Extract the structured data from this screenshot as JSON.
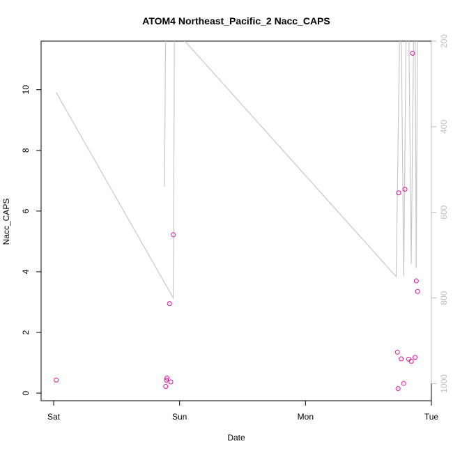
{
  "chart_data": {
    "type": "scatter",
    "title": "ATOM4 Northeast_Pacific_2 Nacc_CAPS",
    "xlabel": "Date",
    "ylabel": "Nacc_CAPS",
    "x_ticks": [
      "Sat",
      "Sun",
      "Mon",
      "Tue"
    ],
    "xlim_days": [
      0,
      3
    ],
    "ylim": [
      -0.25,
      11.6
    ],
    "y_ticks": [
      0,
      2,
      4,
      6,
      8,
      10
    ],
    "grid": false,
    "colors": {
      "points": "#e0139b",
      "altitude_line": "#c8c8c8",
      "right_axis": "#bdbdbd"
    },
    "series": [
      {
        "type": "scatter",
        "x": [
          0.02,
          0.89,
          0.895,
          0.9,
          0.92,
          0.93,
          0.95,
          2.73,
          2.735,
          2.74,
          2.76,
          2.78,
          2.79,
          2.82,
          2.84,
          2.85,
          2.87,
          2.88,
          2.89
        ],
        "y": [
          0.43,
          0.22,
          0.43,
          0.5,
          2.95,
          0.37,
          5.22,
          1.35,
          0.15,
          6.6,
          1.13,
          0.32,
          6.72,
          1.12,
          1.05,
          11.2,
          1.18,
          3.7,
          3.35
        ]
      },
      {
        "type": "line",
        "axis": "right",
        "x": [
          0.02,
          0.95,
          0.96,
          0.98,
          0.99,
          1.0,
          0.89,
          0.88,
          0.89,
          2.72,
          2.75,
          2.76,
          2.78,
          2.8,
          2.82,
          2.84,
          2.86,
          2.87,
          2.88,
          2.89,
          2.9
        ],
        "y": [
          320,
          800,
          150,
          150,
          150,
          150,
          150,
          540,
          150,
          750,
          150,
          150,
          750,
          150,
          150,
          720,
          150,
          150,
          730,
          150,
          150
        ]
      }
    ],
    "right_axis": {
      "ticks": [
        200,
        400,
        600,
        800,
        1000
      ],
      "lim": [
        1040,
        200
      ]
    }
  }
}
